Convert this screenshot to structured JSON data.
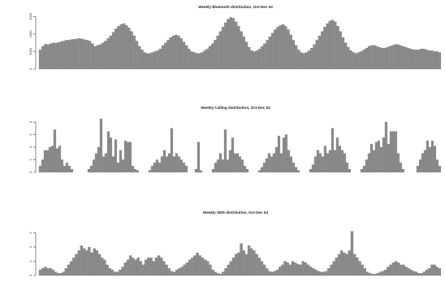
{
  "chart_data": [
    {
      "type": "bar",
      "title": "Weekly Bluetooth distribution, Oct-Dec 04",
      "xlabel": "",
      "ylabel": "",
      "yticks": [
        "0",
        "1000",
        "2000",
        "3000"
      ],
      "ylim": [
        0,
        3200
      ],
      "grid": false,
      "bar_color": "#8c8c8c",
      "axis_color": "#555555",
      "values": [
        1100,
        1300,
        1420,
        1400,
        1450,
        1500,
        1480,
        1520,
        1560,
        1600,
        1650,
        1650,
        1680,
        1700,
        1720,
        1750,
        1720,
        1680,
        1650,
        1600,
        1450,
        1300,
        1350,
        1400,
        1500,
        1600,
        1750,
        1900,
        2100,
        2300,
        2450,
        2550,
        2600,
        2500,
        2350,
        2150,
        1900,
        1600,
        1300,
        1100,
        950,
        900,
        900,
        950,
        1000,
        1050,
        1150,
        1350,
        1500,
        1650,
        1800,
        1900,
        1950,
        1900,
        1750,
        1550,
        1350,
        1150,
        1000,
        950,
        900,
        900,
        950,
        1050,
        1150,
        1300,
        1450,
        1650,
        1900,
        2150,
        2400,
        2650,
        2850,
        2950,
        2900,
        2700,
        2450,
        2150,
        1850,
        1550,
        1250,
        1050,
        1000,
        1050,
        1150,
        1300,
        1450,
        1650,
        1850,
        2050,
        2250,
        2400,
        2500,
        2550,
        2450,
        2250,
        1950,
        1650,
        1350,
        1100,
        950,
        900,
        950,
        1050,
        1200,
        1400,
        1650,
        1900,
        2150,
        2400,
        2600,
        2750,
        2800,
        2700,
        2450,
        2150,
        1800,
        1500,
        1250,
        1050,
        950,
        900,
        950,
        1000,
        1100,
        1200,
        1300,
        1350,
        1350,
        1300,
        1250,
        1200,
        1200,
        1250,
        1300,
        1350,
        1400,
        1400,
        1350,
        1300,
        1250,
        1200,
        1150,
        1100,
        1100,
        1100,
        1150,
        1150,
        1100,
        1050,
        1050,
        1000,
        1000,
        950
      ]
    },
    {
      "type": "bar",
      "title": "Weekly Calling distribution, Oct-Dec 04",
      "xlabel": "",
      "ylabel": "",
      "yticks": [
        "0",
        "2",
        "4",
        "6",
        "8"
      ],
      "ylim": [
        0,
        8.8
      ],
      "grid": false,
      "bar_color": "#8c8c8c",
      "axis_color": "#555555",
      "values": [
        1,
        2,
        3.5,
        3.5,
        4,
        4.2,
        6.8,
        3.8,
        4.2,
        2,
        1,
        1.5,
        1,
        0.5,
        0,
        0,
        0,
        0,
        0,
        0,
        0.5,
        1,
        2,
        3,
        4,
        8.5,
        2.5,
        3,
        6.5,
        5.5,
        2.5,
        5.2,
        1.5,
        3.5,
        2,
        5,
        4.8,
        4.8,
        1,
        0.5,
        0.3,
        0,
        0,
        0,
        0,
        0.3,
        1,
        1.5,
        2,
        1.5,
        2.5,
        3.5,
        2.5,
        3,
        7,
        2.5,
        3,
        2.5,
        2,
        1.5,
        1,
        0,
        0,
        0,
        0.5,
        4.8,
        0.3,
        0,
        0,
        0,
        0,
        0.5,
        1.5,
        2,
        3,
        2,
        6.8,
        2,
        3.5,
        5.5,
        3,
        3,
        2.5,
        2,
        1,
        0.5,
        0,
        0,
        0,
        0,
        0.3,
        0.8,
        1.5,
        2.2,
        3,
        2.5,
        3,
        4,
        5.8,
        3,
        5.5,
        6,
        3.5,
        2.5,
        1.5,
        0.8,
        0.3,
        0,
        0,
        0,
        0,
        0.5,
        1.2,
        2.5,
        3.5,
        3,
        2.5,
        4.2,
        3,
        3.5,
        7,
        3.5,
        5.5,
        4.2,
        3.5,
        3,
        1.5,
        0.5,
        0,
        0,
        0,
        0,
        0.5,
        1,
        2,
        3,
        4.5,
        3.5,
        4.8,
        5,
        4,
        5.5,
        8,
        4.5,
        6.5,
        6.5,
        6.5,
        3,
        1.5,
        0.5,
        0,
        0,
        0,
        0,
        0,
        1,
        2,
        3,
        3.5,
        5,
        4,
        5,
        4.2,
        2,
        1
      ]
    },
    {
      "type": "bar",
      "title": "Weekly SMS distribution, Oct-Dec 04",
      "xlabel": "",
      "ylabel": "",
      "yticks": [
        "0",
        "2",
        "4",
        "6"
      ],
      "ylim": [
        0,
        7.2
      ],
      "grid": false,
      "bar_color": "#8c8c8c",
      "axis_color": "#555555",
      "values": [
        0.8,
        1,
        1.2,
        1,
        1,
        0.8,
        0.5,
        0.3,
        0.3,
        0.5,
        1,
        1.5,
        2,
        2.5,
        3,
        3.5,
        4.2,
        3.8,
        3.5,
        4,
        3.2,
        3.8,
        3.5,
        3,
        2.5,
        2.2,
        1.5,
        1,
        0.8,
        0.5,
        0.5,
        0.8,
        1.2,
        1.8,
        2.2,
        2.8,
        2.5,
        2.2,
        2.5,
        2,
        1.5,
        2.2,
        2.5,
        2.5,
        2,
        2.5,
        2.8,
        2.5,
        2,
        1.5,
        1,
        0.6,
        0.5,
        0.8,
        1,
        1.2,
        1.5,
        1.8,
        2.2,
        2.5,
        2.8,
        3.2,
        2.8,
        2.5,
        2.2,
        2,
        1.5,
        0.8,
        0.5,
        0.3,
        0.2,
        0.5,
        1,
        1.5,
        2,
        2.5,
        3,
        3.2,
        4.5,
        3.5,
        3,
        4.2,
        3.8,
        3.5,
        3,
        2.5,
        2,
        1.5,
        1,
        0.6,
        0.5,
        0.6,
        0.8,
        1.2,
        1.5,
        2,
        1.8,
        1.5,
        2,
        1.8,
        1.6,
        1.5,
        2,
        1.8,
        1.5,
        1.2,
        1,
        0.8,
        0.6,
        0.5,
        0.5,
        0.6,
        1,
        1.5,
        2,
        2.5,
        3,
        3.5,
        3.2,
        3,
        3.5,
        6.2,
        3,
        2.5,
        2,
        1.5,
        1,
        0.5,
        0.3,
        0.2,
        0.2,
        0.3,
        0.5,
        0.6,
        0.8,
        1.2,
        1.5,
        1.8,
        2,
        1.8,
        1.5,
        1.5,
        1.2,
        1,
        0.8,
        0.6,
        0.5,
        0.3,
        0.3,
        0.5,
        0.8,
        1,
        1.5,
        1.5,
        1.2,
        1
      ]
    }
  ]
}
